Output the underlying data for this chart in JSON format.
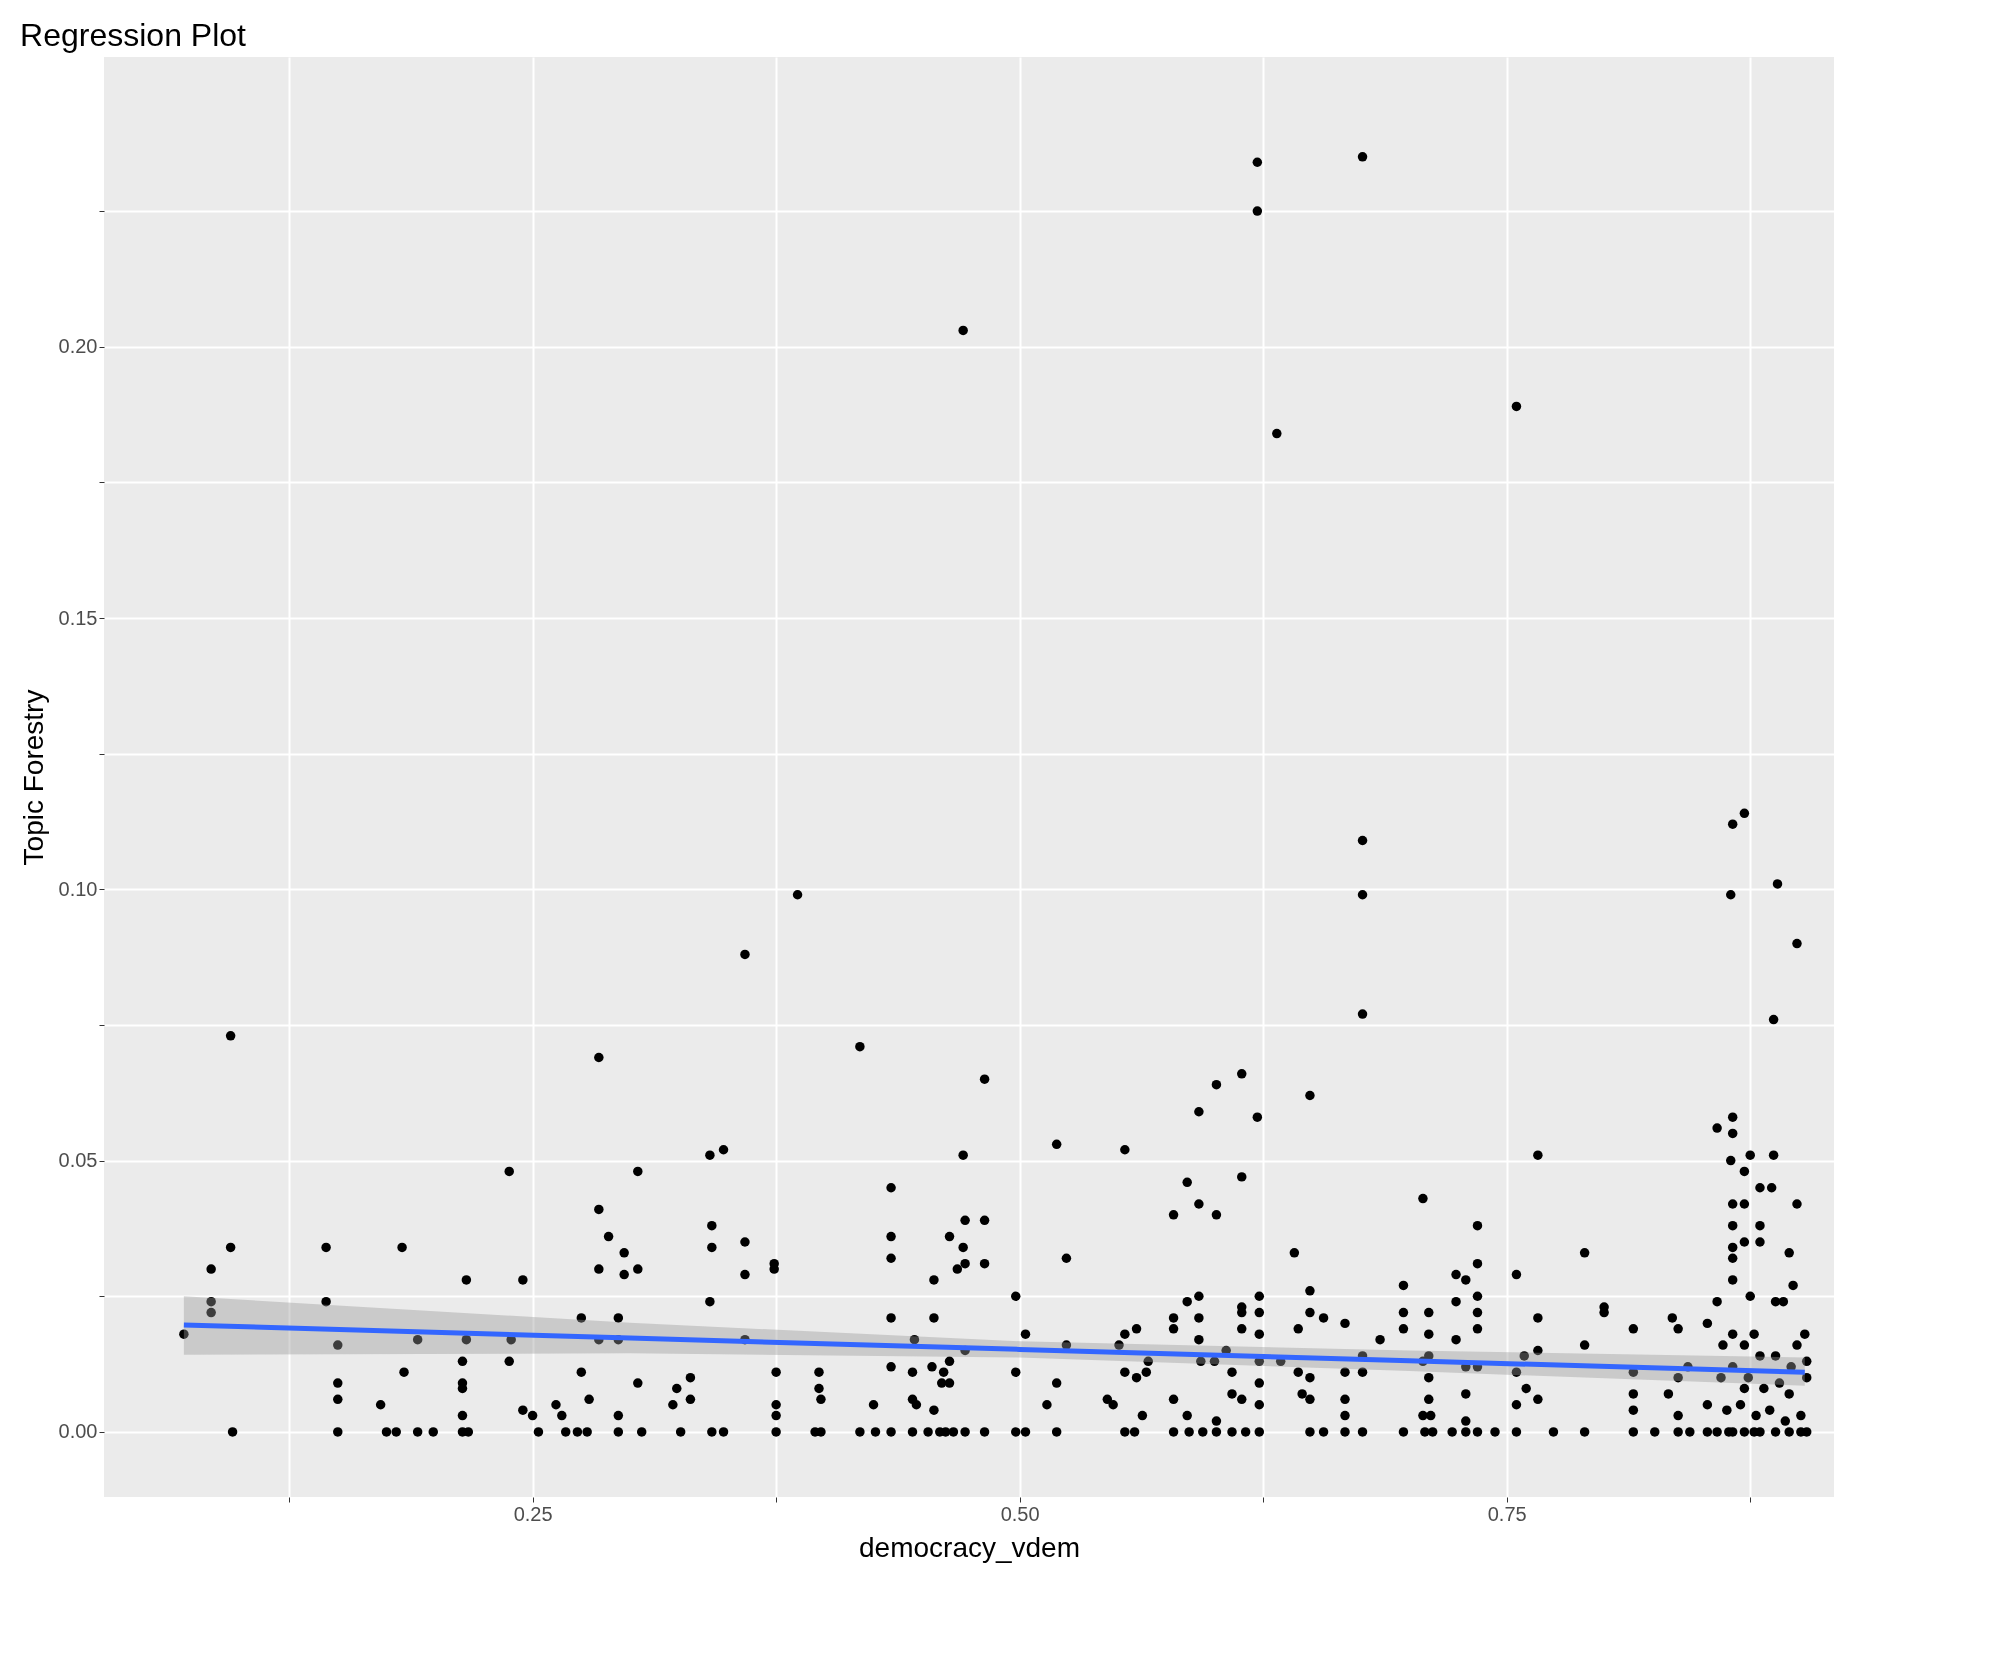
{
  "chart_data": {
    "type": "scatter",
    "title": "Regression Plot",
    "xlabel": "democracy_vdem",
    "ylabel": "Topic Forestry",
    "grid": true,
    "marker": "circle",
    "xlim": [
      0.03,
      0.918
    ],
    "ylim": [
      -0.012,
      0.2534
    ],
    "xticks": [
      {
        "value": 0.125,
        "label": null
      },
      0.25,
      {
        "value": 0.375,
        "label": null
      },
      {
        "value": 0.5,
        "label": "0.50"
      },
      {
        "value": 0.625,
        "label": null
      },
      0.75,
      {
        "value": 0.875,
        "label": null
      }
    ],
    "yticks": [
      {
        "value": 0,
        "label": "0.00"
      },
      {
        "value": 0.025,
        "label": null
      },
      0.05,
      {
        "value": 0.075,
        "label": null
      },
      {
        "value": 0.1,
        "label": "0.10"
      },
      {
        "value": 0.125,
        "label": null
      },
      0.15,
      {
        "value": 0.175,
        "label": null
      },
      {
        "value": 0.2,
        "label": "0.20"
      },
      {
        "value": 0.225,
        "label": null
      }
    ],
    "series": [
      {
        "color": "#000000",
        "x": [
          0.071,
          0.085,
          0.085,
          0.085,
          0.095,
          0.095,
          0.096,
          0.144,
          0.144,
          0.15,
          0.15,
          0.15,
          0.15,
          0.172,
          0.175,
          0.18,
          0.183,
          0.184,
          0.191,
          0.191,
          0.199,
          0.214,
          0.214,
          0.214,
          0.214,
          0.214,
          0.216,
          0.216,
          0.217,
          0.238,
          0.238,
          0.239,
          0.245,
          0.245,
          0.25,
          0.253,
          0.262,
          0.265,
          0.267,
          0.273,
          0.275,
          0.275,
          0.278,
          0.279,
          0.284,
          0.284,
          0.284,
          0.284,
          0.289,
          0.294,
          0.294,
          0.294,
          0.294,
          0.297,
          0.297,
          0.304,
          0.304,
          0.304,
          0.306,
          0.322,
          0.324,
          0.326,
          0.331,
          0.331,
          0.341,
          0.342,
          0.342,
          0.341,
          0.342,
          0.348,
          0.348,
          0.359,
          0.359,
          0.359,
          0.359,
          0.374,
          0.374,
          0.375,
          0.375,
          0.375,
          0.375,
          0.386,
          0.395,
          0.397,
          0.397,
          0.398,
          0.398,
          0.418,
          0.418,
          0.425,
          0.426,
          0.434,
          0.434,
          0.434,
          0.434,
          0.434,
          0.434,
          0.445,
          0.445,
          0.445,
          0.446,
          0.447,
          0.453,
          0.455,
          0.456,
          0.456,
          0.456,
          0.459,
          0.46,
          0.461,
          0.462,
          0.464,
          0.464,
          0.464,
          0.466,
          0.468,
          0.471,
          0.471,
          0.471,
          0.472,
          0.472,
          0.472,
          0.472,
          0.482,
          0.482,
          0.482,
          0.482,
          0.498,
          0.498,
          0.498,
          0.503,
          0.503,
          0.514,
          0.519,
          0.519,
          0.519,
          0.524,
          0.524,
          0.545,
          0.548,
          0.551,
          0.554,
          0.554,
          0.554,
          0.554,
          0.559,
          0.56,
          0.56,
          0.563,
          0.565,
          0.566,
          0.579,
          0.579,
          0.579,
          0.579,
          0.579,
          0.586,
          0.586,
          0.586,
          0.587,
          0.592,
          0.592,
          0.592,
          0.592,
          0.592,
          0.593,
          0.594,
          0.601,
          0.601,
          0.6,
          0.601,
          0.601,
          0.606,
          0.609,
          0.609,
          0.609,
          0.614,
          0.614,
          0.614,
          0.614,
          0.614,
          0.614,
          0.616,
          0.622,
          0.622,
          0.622,
          0.623,
          0.623,
          0.623,
          0.623,
          0.623,
          0.623,
          0.623,
          0.632,
          0.634,
          0.641,
          0.643,
          0.643,
          0.645,
          0.649,
          0.649,
          0.649,
          0.649,
          0.649,
          0.649,
          0.656,
          0.656,
          0.667,
          0.667,
          0.667,
          0.667,
          0.667,
          0.676,
          0.676,
          0.676,
          0.676,
          0.676,
          0.676,
          0.676,
          0.685,
          0.697,
          0.697,
          0.697,
          0.697,
          0.707,
          0.707,
          0.707,
          0.708,
          0.71,
          0.71,
          0.71,
          0.71,
          0.71,
          0.712,
          0.711,
          0.722,
          0.724,
          0.724,
          0.724,
          0.729,
          0.729,
          0.729,
          0.729,
          0.729,
          0.735,
          0.735,
          0.735,
          0.735,
          0.735,
          0.735,
          0.735,
          0.744,
          0.755,
          0.755,
          0.755,
          0.755,
          0.755,
          0.759,
          0.76,
          0.766,
          0.766,
          0.766,
          0.766,
          0.774,
          0.79,
          0.79,
          0.79,
          0.8,
          0.8,
          0.815,
          0.815,
          0.815,
          0.815,
          0.815,
          0.826,
          0.833,
          0.835,
          0.838,
          0.838,
          0.838,
          0.838,
          0.843,
          0.844,
          0.853,
          0.853,
          0.853,
          0.858,
          0.858,
          0.858,
          0.861,
          0.864,
          0.866,
          0.865,
          0.866,
          0.866,
          0.865,
          0.866,
          0.866,
          0.866,
          0.866,
          0.866,
          0.866,
          0.866,
          0.866,
          0.872,
          0.872,
          0.872,
          0.872,
          0.872,
          0.872,
          0.872,
          0.875,
          0.875,
          0.877,
          0.877,
          0.88,
          0.88,
          0.88,
          0.88,
          0.88,
          0.886,
          0.887,
          0.887,
          0.889,
          0.888,
          0.888,
          0.888,
          0.892,
          0.895,
          0.895,
          0.895,
          0.897,
          0.899,
          0.899,
          0.899,
          0.901,
          0.901,
          0.903,
          0.904,
          0.904,
          0.904,
          0.87,
          0.874,
          0.878,
          0.882,
          0.885,
          0.89,
          0.893,
          0.896,
          0.86,
          0.863
        ],
        "values": [
          0.018,
          0.03,
          0.024,
          0.022,
          0.073,
          0.034,
          0,
          0.034,
          0.024,
          0.016,
          0.009,
          0.006,
          0,
          0.005,
          0,
          0,
          0.034,
          0.011,
          0.017,
          0,
          0,
          0,
          0.003,
          0.008,
          0.009,
          0.013,
          0.028,
          0.017,
          0,
          0.048,
          0.013,
          0.017,
          0.028,
          0.004,
          0.003,
          0,
          0.005,
          0.003,
          0,
          0,
          0.021,
          0.011,
          0,
          0.006,
          0.069,
          0.041,
          0.03,
          0.017,
          0.036,
          0.021,
          0.017,
          0.003,
          0,
          0.033,
          0.029,
          0.048,
          0.03,
          0.009,
          0,
          0.005,
          0.008,
          0,
          0.01,
          0.006,
          0.051,
          0.038,
          0.034,
          0.024,
          0,
          0.052,
          0,
          0.088,
          0.035,
          0.029,
          0.017,
          0.031,
          0.03,
          0.011,
          0.005,
          0.003,
          0,
          0.099,
          0,
          0.011,
          0.008,
          0.006,
          0,
          0.071,
          0,
          0.005,
          0,
          0.045,
          0.036,
          0.032,
          0.021,
          0.012,
          0,
          0,
          0.011,
          0.006,
          0.017,
          0.005,
          0,
          0.012,
          0.028,
          0.021,
          0.004,
          0,
          0.009,
          0.011,
          0,
          0.036,
          0.009,
          0.013,
          0,
          0.03,
          0.203,
          0.051,
          0.034,
          0.039,
          0.031,
          0.015,
          0,
          0.065,
          0.039,
          0.031,
          0,
          0.025,
          0.011,
          0,
          0,
          0.018,
          0.005,
          0.053,
          0.009,
          0,
          0.032,
          0.016,
          0.006,
          0.005,
          0.016,
          0.052,
          0.018,
          0.011,
          0,
          0,
          0.019,
          0.01,
          0.003,
          0.011,
          0.013,
          0.04,
          0.021,
          0.019,
          0.006,
          0,
          0.046,
          0.024,
          0.003,
          0,
          0.059,
          0.042,
          0.025,
          0.021,
          0.017,
          0.013,
          0,
          0.064,
          0.04,
          0.013,
          0.002,
          0,
          0.015,
          0.011,
          0.007,
          0,
          0.066,
          0.047,
          0.023,
          0.022,
          0.019,
          0.006,
          0,
          0.234,
          0.225,
          0.058,
          0.025,
          0.022,
          0.018,
          0.013,
          0.009,
          0.005,
          0,
          0.184,
          0.013,
          0.033,
          0.019,
          0.011,
          0.007,
          0.062,
          0.026,
          0.022,
          0.01,
          0.006,
          0,
          0,
          0.021,
          0.02,
          0.011,
          0.006,
          0.003,
          0,
          0.235,
          0.109,
          0.099,
          0.077,
          0.014,
          0.011,
          0,
          0.017,
          0.027,
          0.022,
          0.019,
          0,
          0.043,
          0.013,
          0.003,
          0,
          0.022,
          0.018,
          0.014,
          0.01,
          0.006,
          0,
          0.003,
          0,
          0.029,
          0.024,
          0.017,
          0.028,
          0.012,
          0.007,
          0.002,
          0,
          0.038,
          0.031,
          0.025,
          0.022,
          0.019,
          0.012,
          0,
          0,
          0.189,
          0.029,
          0.011,
          0.005,
          0,
          0.014,
          0.008,
          0.051,
          0.021,
          0.015,
          0.006,
          0,
          0.033,
          0.016,
          0,
          0.023,
          0.022,
          0.019,
          0.011,
          0.007,
          0.004,
          0,
          0,
          0.007,
          0.021,
          0.019,
          0.01,
          0.003,
          0,
          0.012,
          0,
          0.02,
          0.005,
          0,
          0.056,
          0.024,
          0,
          0.016,
          0,
          0.112,
          0.099,
          0.058,
          0.055,
          0.05,
          0.042,
          0.038,
          0.034,
          0.032,
          0.028,
          0.018,
          0.012,
          0,
          0.114,
          0.048,
          0.042,
          0.035,
          0.016,
          0.008,
          0,
          0.051,
          0.025,
          0.018,
          0,
          0.045,
          0.038,
          0.035,
          0.014,
          0,
          0.045,
          0.051,
          0.076,
          0.101,
          0.024,
          0.014,
          0,
          0.024,
          0.033,
          0.007,
          0,
          0.027,
          0.09,
          0.042,
          0.016,
          0.003,
          0,
          0.018,
          0.013,
          0.01,
          0,
          0.005,
          0.01,
          0.003,
          0.008,
          0.004,
          0.009,
          0.002,
          0.012,
          0.01,
          0.004
        ]
      },
      {
        "type": "line",
        "color": "#3366ff",
        "line_style": "solid",
        "marker": "none",
        "x": [
          0.071,
          0.3,
          0.5,
          0.7,
          0.903
        ],
        "values": [
          0.0197,
          0.0173,
          0.0152,
          0.0131,
          0.011
        ],
        "lower": [
          0.0142,
          0.0145,
          0.0137,
          0.0112,
          0.0085
        ],
        "upper": [
          0.025,
          0.0201,
          0.0167,
          0.015,
          0.0137
        ]
      }
    ]
  }
}
